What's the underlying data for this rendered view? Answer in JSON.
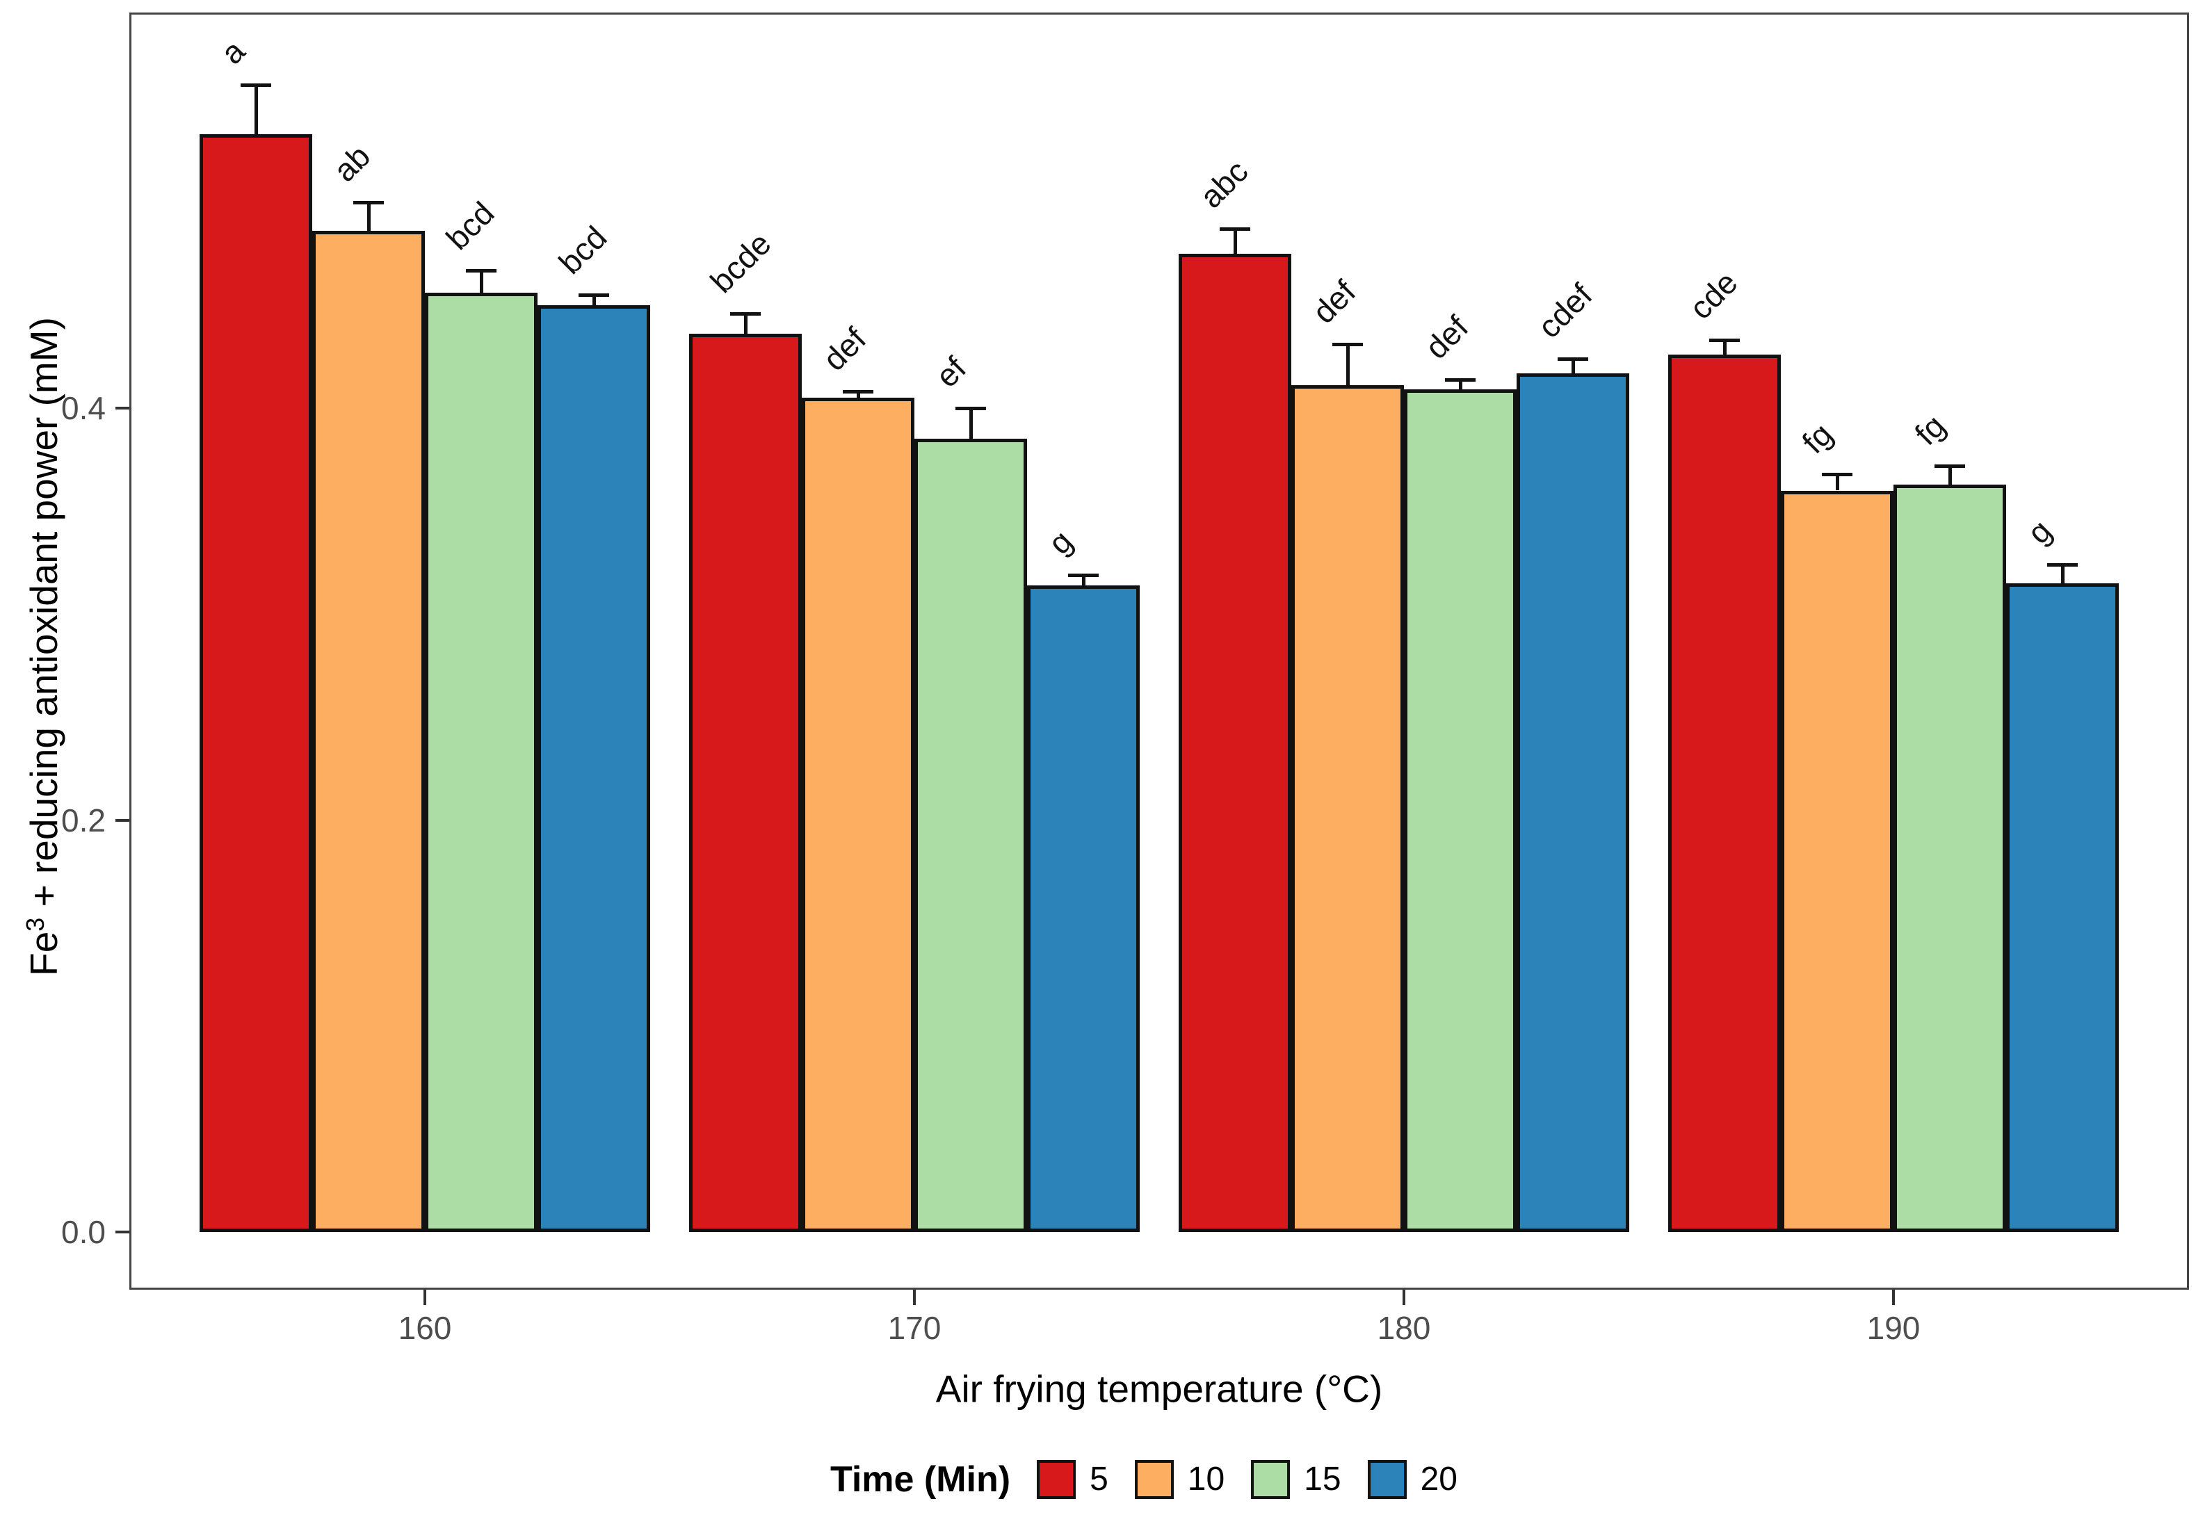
{
  "chart_data": {
    "type": "bar",
    "title": "",
    "xlabel": "Air frying temperature (°C)",
    "ylabel_prefix": "Fe",
    "ylabel_sup": "3",
    "ylabel_rest": " + reducing antioxidant power (mM)",
    "legend_title": "Time (Min)",
    "legend_position": "bottom",
    "grid": false,
    "categories": [
      "160",
      "170",
      "180",
      "190"
    ],
    "yticks": [
      0.0,
      0.2,
      0.4
    ],
    "ytick_labels": [
      "0.0",
      "0.2",
      "0.4"
    ],
    "ylim": [
      0,
      0.592
    ],
    "axis_text_color": "#4d4d4d",
    "series": [
      {
        "name": "5",
        "color": "#d7191c",
        "values": [
          0.533,
          0.436,
          0.475,
          0.426
        ],
        "errors": [
          0.024,
          0.01,
          0.012,
          0.007
        ],
        "letters": [
          "a",
          "bcde",
          "abc",
          "cde"
        ]
      },
      {
        "name": "10",
        "color": "#fdae61",
        "values": [
          0.486,
          0.405,
          0.411,
          0.36
        ],
        "errors": [
          0.014,
          0.003,
          0.02,
          0.008
        ],
        "letters": [
          "ab",
          "def",
          "def",
          "fg"
        ]
      },
      {
        "name": "15",
        "color": "#abdda4",
        "values": [
          0.456,
          0.385,
          0.409,
          0.363
        ],
        "errors": [
          0.011,
          0.015,
          0.005,
          0.009
        ],
        "letters": [
          "bcd",
          "ef",
          "def",
          "fg"
        ]
      },
      {
        "name": "20",
        "color": "#2b83ba",
        "values": [
          0.45,
          0.314,
          0.417,
          0.315
        ],
        "errors": [
          0.005,
          0.005,
          0.007,
          0.009
        ],
        "letters": [
          "bcd",
          "g",
          "cdef",
          "g"
        ]
      }
    ]
  }
}
